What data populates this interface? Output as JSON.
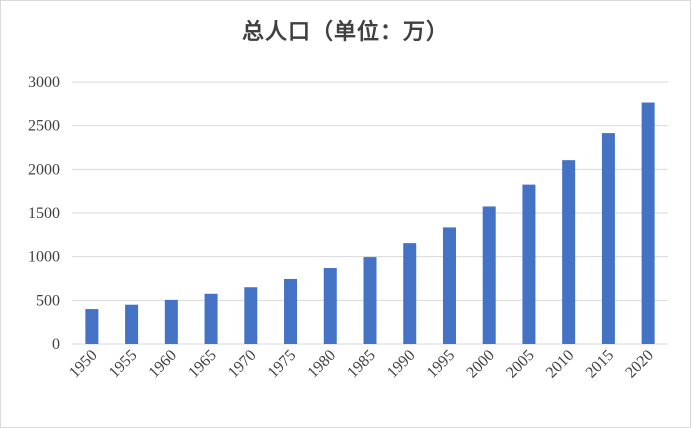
{
  "chart_data": {
    "type": "bar",
    "title": "总人口（单位：万）",
    "xlabel": "",
    "ylabel": "",
    "categories": [
      "1950",
      "1955",
      "1960",
      "1965",
      "1970",
      "1975",
      "1980",
      "1985",
      "1990",
      "1995",
      "2000",
      "2005",
      "2010",
      "2015",
      "2020"
    ],
    "values": [
      400,
      450,
      505,
      575,
      650,
      745,
      870,
      995,
      1155,
      1335,
      1575,
      1825,
      2105,
      2415,
      2765
    ],
    "ylim": [
      0,
      3000
    ],
    "yticks": [
      "0",
      "500",
      "1000",
      "1500",
      "2000",
      "2500",
      "3000"
    ],
    "grid": true,
    "legend": "none",
    "bar_color": "#4472c4",
    "gridline_color": "#d9d9d9"
  }
}
